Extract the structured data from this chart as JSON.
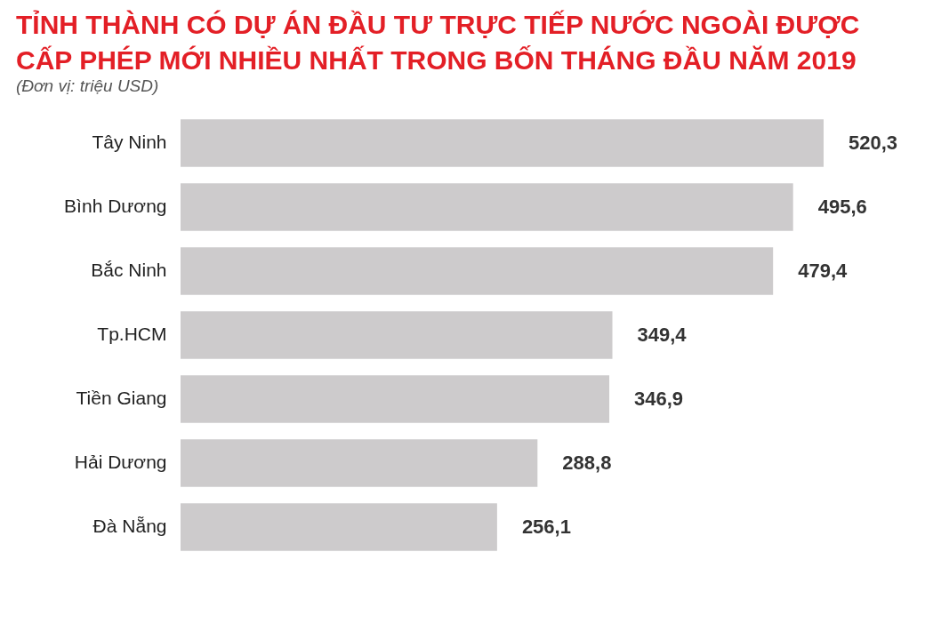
{
  "chart_data": {
    "type": "bar",
    "orientation": "horizontal",
    "title": "TỈNH THÀNH CÓ DỰ ÁN ĐẦU TƯ TRỰC TIẾP NƯỚC NGOÀI ĐƯỢC CẤP PHÉP MỚI NHIỀU NHẤT TRONG BỐN THÁNG ĐẦU NĂM 2019",
    "subtitle": "(Đơn vị: triệu USD)",
    "categories": [
      "Tây Ninh",
      "Bình Dương",
      "Bắc Ninh",
      "Tp.HCM",
      "Tiền Giang",
      "Hải Dương",
      "Đà Nẵng"
    ],
    "values": [
      520.3,
      495.6,
      479.4,
      349.4,
      346.9,
      288.8,
      256.1
    ],
    "value_labels": [
      "520,3",
      "495,6",
      "479,4",
      "349,4",
      "346,9",
      "288,8",
      "256,1"
    ],
    "color": "#cdcbcc"
  }
}
